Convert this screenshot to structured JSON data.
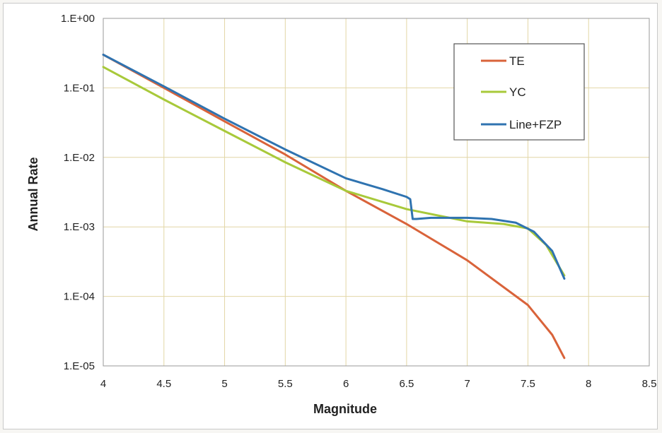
{
  "chart_data": {
    "type": "line",
    "title": "",
    "xlabel": "Magnitude",
    "ylabel": "Annual Rate",
    "xlim": [
      4,
      8.5
    ],
    "ylim": [
      1e-05,
      1
    ],
    "yscale": "log",
    "grid": true,
    "legend_position": "top-right",
    "x_ticks": [
      "4",
      "4.5",
      "5",
      "5.5",
      "6",
      "6.5",
      "7",
      "7.5",
      "8",
      "8.5"
    ],
    "y_ticks": [
      "1.E+00",
      "1.E-01",
      "1.E-02",
      "1.E-03",
      "1.E-04",
      "1.E-05"
    ],
    "series": [
      {
        "name": "TE",
        "color": "#d9633a",
        "x": [
          4.0,
          4.5,
          5.0,
          5.5,
          6.0,
          6.5,
          7.0,
          7.5,
          7.7,
          7.8
        ],
        "y": [
          0.3,
          0.1,
          0.033,
          0.011,
          0.0033,
          0.0011,
          0.00033,
          7.5e-05,
          2.8e-05,
          1.3e-05
        ]
      },
      {
        "name": "YC",
        "color": "#a8c93a",
        "x": [
          4.0,
          4.5,
          5.0,
          5.5,
          6.0,
          6.5,
          7.0,
          7.3,
          7.5,
          7.65,
          7.8
        ],
        "y": [
          0.2,
          0.068,
          0.024,
          0.0085,
          0.0033,
          0.0018,
          0.0012,
          0.0011,
          0.00095,
          0.00055,
          0.0002
        ]
      },
      {
        "name": "Line+FZP",
        "color": "#2f73b0",
        "x": [
          4.0,
          4.5,
          5.0,
          5.5,
          6.0,
          6.3,
          6.5,
          6.53,
          6.55,
          6.58,
          6.7,
          7.0,
          7.2,
          7.4,
          7.55,
          7.7,
          7.8
        ],
        "y": [
          0.3,
          0.105,
          0.036,
          0.013,
          0.005,
          0.0035,
          0.0027,
          0.0025,
          0.0013,
          0.0013,
          0.00135,
          0.00135,
          0.0013,
          0.00115,
          0.00085,
          0.00045,
          0.00018
        ]
      }
    ]
  }
}
